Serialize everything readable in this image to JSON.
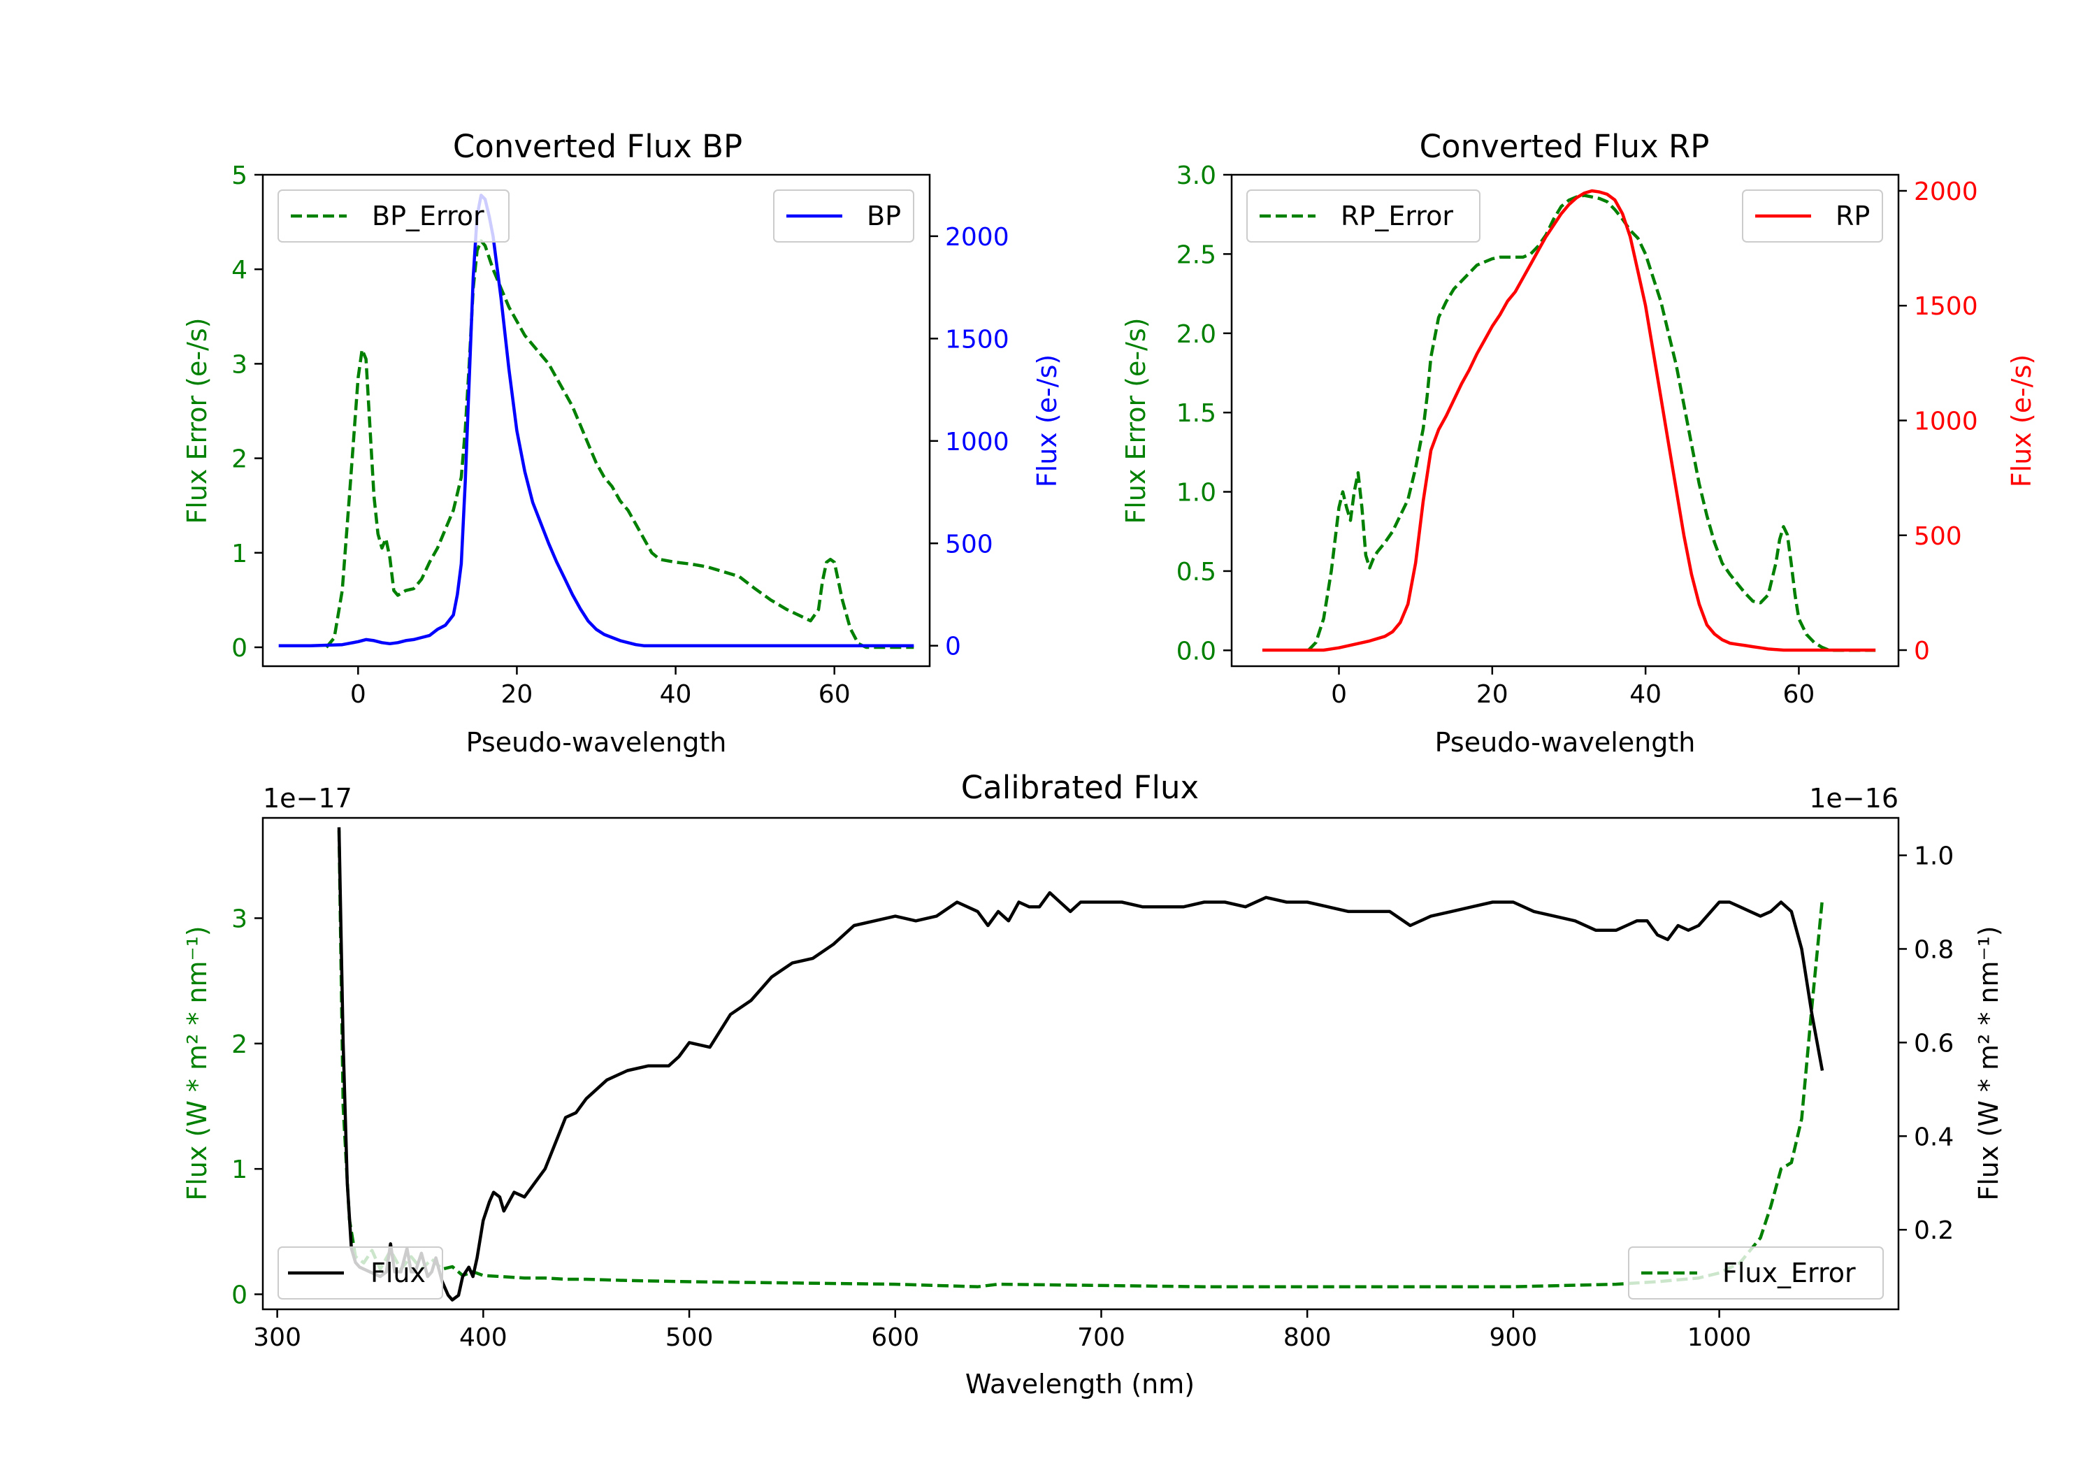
{
  "colors": {
    "error": "#008000",
    "bp": "#0000ff",
    "rp": "#ff0000",
    "flux": "#000000",
    "axis": "#000000",
    "legend_edge": "#cccccc"
  },
  "chart_data": [
    {
      "type": "line",
      "title": "Converted Flux BP",
      "xlabel": "Pseudo-wavelength",
      "ylabel_left": "Flux Error (e-/s)",
      "ylabel_right": "Flux (e-/s)",
      "xlim": [
        -12,
        72
      ],
      "ylim_left": [
        -0.2,
        5
      ],
      "ylim_right": [
        -100,
        2300
      ],
      "xticks": [
        0,
        20,
        40,
        60
      ],
      "yticks_left": [
        0,
        1,
        2,
        3,
        4,
        5
      ],
      "yticks_right": [
        0,
        500,
        1000,
        1500,
        2000
      ],
      "legend_left_position": "upper-left",
      "legend_right_position": "upper-right",
      "series": [
        {
          "name": "BP_Error",
          "axis": "left",
          "style": "dashed",
          "color": "#008000",
          "x": [
            -4,
            -3,
            -2,
            -1,
            0,
            0.5,
            1,
            2,
            2.5,
            3,
            3.5,
            4,
            4.5,
            5,
            6,
            7,
            8,
            9,
            10,
            11,
            12,
            13,
            13.5,
            14,
            14.5,
            15,
            15.5,
            16,
            17,
            18,
            19,
            20,
            21,
            22,
            23,
            24,
            25,
            26,
            27,
            28,
            29,
            30,
            31,
            32,
            33,
            34,
            35,
            36,
            37,
            38,
            40,
            42,
            44,
            46,
            48,
            50,
            52,
            54,
            56,
            57,
            58,
            58.5,
            59,
            59.5,
            60,
            61,
            62,
            63,
            64,
            66,
            68,
            70
          ],
          "values": [
            0,
            0.1,
            0.6,
            1.7,
            2.85,
            3.15,
            3.05,
            1.6,
            1.2,
            1.05,
            1.15,
            0.95,
            0.6,
            0.55,
            0.6,
            0.62,
            0.72,
            0.9,
            1.05,
            1.25,
            1.45,
            1.8,
            2.3,
            3.0,
            3.8,
            4.2,
            4.3,
            4.25,
            4.0,
            3.8,
            3.6,
            3.45,
            3.3,
            3.2,
            3.1,
            3.0,
            2.85,
            2.7,
            2.55,
            2.35,
            2.15,
            1.95,
            1.8,
            1.7,
            1.55,
            1.45,
            1.3,
            1.15,
            1.0,
            0.93,
            0.9,
            0.88,
            0.85,
            0.8,
            0.75,
            0.62,
            0.5,
            0.4,
            0.32,
            0.28,
            0.4,
            0.7,
            0.9,
            0.93,
            0.9,
            0.5,
            0.2,
            0.04,
            0,
            0,
            0,
            0
          ]
        },
        {
          "name": "BP",
          "axis": "right",
          "style": "solid",
          "color": "#0000ff",
          "x": [
            -10,
            -6,
            -2,
            0,
            1,
            2,
            3,
            4,
            5,
            6,
            7,
            8,
            9,
            10,
            11,
            12,
            12.5,
            13,
            13.5,
            14,
            14.5,
            15,
            15.5,
            16,
            16.5,
            17,
            18,
            19,
            20,
            21,
            22,
            23,
            24,
            25,
            26,
            27,
            28,
            29,
            30,
            31,
            32,
            33,
            34,
            35,
            36,
            37,
            38,
            40,
            45,
            50,
            55,
            60,
            65,
            70
          ],
          "values": [
            0,
            0,
            5,
            20,
            30,
            25,
            15,
            10,
            15,
            25,
            30,
            40,
            50,
            80,
            100,
            150,
            250,
            400,
            800,
            1300,
            1800,
            2100,
            2200,
            2180,
            2100,
            2000,
            1700,
            1350,
            1050,
            850,
            700,
            600,
            500,
            410,
            330,
            250,
            180,
            120,
            80,
            55,
            40,
            25,
            15,
            5,
            0,
            0,
            0,
            0,
            0,
            0,
            0,
            0,
            0,
            0
          ]
        }
      ]
    },
    {
      "type": "line",
      "title": "Converted Flux RP",
      "xlabel": "Pseudo-wavelength",
      "ylabel_left": "Flux Error (e-/s)",
      "ylabel_right": "Flux (e-/s)",
      "xlim": [
        -14,
        73
      ],
      "ylim_left": [
        -0.1,
        3.0
      ],
      "ylim_right": [
        -70,
        2070
      ],
      "xticks": [
        0,
        20,
        40,
        60
      ],
      "yticks_left": [
        0.0,
        0.5,
        1.0,
        1.5,
        2.0,
        2.5,
        3.0
      ],
      "yticks_right": [
        0,
        500,
        1000,
        1500,
        2000
      ],
      "legend_left_position": "upper-left",
      "legend_right_position": "upper-right",
      "series": [
        {
          "name": "RP_Error",
          "axis": "left",
          "style": "dashed",
          "color": "#008000",
          "x": [
            -4,
            -3,
            -2,
            -1,
            0,
            0.5,
            1,
            1.5,
            2,
            2.5,
            3,
            3.5,
            4,
            4.5,
            5,
            6,
            7,
            8,
            9,
            10,
            11,
            11.5,
            12,
            13,
            14,
            15,
            16,
            17,
            18,
            19,
            20,
            21,
            22,
            23,
            24,
            25,
            26,
            27,
            28,
            29,
            30,
            31,
            32,
            33,
            34,
            35,
            36,
            37,
            38,
            39,
            40,
            41,
            42,
            43,
            44,
            45,
            46,
            47,
            48,
            49,
            50,
            51,
            52,
            53,
            54,
            55,
            56,
            57,
            57.5,
            58,
            58.5,
            59,
            59.5,
            60,
            61,
            62,
            63,
            64,
            66,
            70
          ],
          "values": [
            0,
            0.05,
            0.2,
            0.5,
            0.9,
            1.0,
            0.9,
            0.82,
            1.0,
            1.12,
            0.9,
            0.6,
            0.52,
            0.58,
            0.62,
            0.68,
            0.75,
            0.85,
            0.95,
            1.15,
            1.4,
            1.6,
            1.85,
            2.1,
            2.2,
            2.28,
            2.33,
            2.38,
            2.43,
            2.45,
            2.47,
            2.48,
            2.48,
            2.48,
            2.48,
            2.5,
            2.55,
            2.62,
            2.72,
            2.8,
            2.84,
            2.86,
            2.87,
            2.86,
            2.85,
            2.83,
            2.78,
            2.72,
            2.65,
            2.6,
            2.5,
            2.35,
            2.2,
            2.0,
            1.8,
            1.55,
            1.3,
            1.05,
            0.85,
            0.68,
            0.55,
            0.48,
            0.42,
            0.36,
            0.31,
            0.3,
            0.35,
            0.55,
            0.7,
            0.78,
            0.73,
            0.55,
            0.35,
            0.2,
            0.1,
            0.05,
            0.02,
            0,
            0,
            0
          ]
        },
        {
          "name": "RP",
          "axis": "right",
          "style": "solid",
          "color": "#ff0000",
          "x": [
            -10,
            -2,
            0,
            2,
            4,
            6,
            7,
            8,
            9,
            10,
            11,
            12,
            13,
            14,
            15,
            16,
            17,
            18,
            19,
            20,
            21,
            22,
            23,
            24,
            25,
            26,
            27,
            28,
            29,
            30,
            31,
            32,
            33,
            34,
            35,
            36,
            37,
            38,
            39,
            40,
            41,
            42,
            43,
            44,
            45,
            46,
            47,
            48,
            49,
            50,
            51,
            52,
            53,
            54,
            55,
            56,
            58,
            60,
            62,
            64,
            66,
            70
          ],
          "values": [
            0,
            0,
            10,
            25,
            40,
            60,
            80,
            120,
            200,
            380,
            650,
            870,
            960,
            1020,
            1090,
            1160,
            1220,
            1290,
            1350,
            1410,
            1460,
            1520,
            1560,
            1620,
            1680,
            1740,
            1800,
            1850,
            1900,
            1940,
            1970,
            1990,
            2000,
            1995,
            1985,
            1960,
            1900,
            1800,
            1650,
            1500,
            1300,
            1100,
            900,
            700,
            500,
            330,
            200,
            110,
            70,
            45,
            30,
            25,
            20,
            15,
            10,
            5,
            0,
            0,
            0,
            0,
            0,
            0
          ]
        }
      ]
    },
    {
      "type": "line",
      "title": "Calibrated Flux",
      "xlabel": "Wavelength (nm)",
      "ylabel_left": "Flux (W * m² * nm⁻¹)",
      "ylabel_right": "Flux (W * m² * nm⁻¹)",
      "offset_left": "1e−17",
      "offset_right": "1e−16",
      "xlim": [
        293,
        1087
      ],
      "ylim_left": [
        -0.12,
        3.8
      ],
      "ylim_right": [
        0.03,
        1.08
      ],
      "xticks": [
        300,
        400,
        500,
        600,
        700,
        800,
        900,
        1000
      ],
      "yticks_left": [
        0,
        1,
        2,
        3
      ],
      "yticks_right": [
        0.2,
        0.4,
        0.6,
        0.8,
        1.0
      ],
      "legend_left_position": "lower-left",
      "legend_right_position": "lower-right",
      "series": [
        {
          "name": "Flux_Error",
          "axis": "left",
          "style": "dashed",
          "color": "#008000",
          "x": [
            330,
            332,
            335,
            338,
            342,
            346,
            350,
            355,
            360,
            365,
            370,
            375,
            380,
            385,
            390,
            395,
            400,
            410,
            420,
            430,
            440,
            450,
            470,
            500,
            550,
            600,
            620,
            640,
            650,
            700,
            750,
            800,
            850,
            900,
            950,
            970,
            990,
            1000,
            1010,
            1015,
            1020,
            1025,
            1030,
            1035,
            1040,
            1045,
            1050
          ],
          "values": [
            3.7,
            1.5,
            0.6,
            0.3,
            0.25,
            0.35,
            0.2,
            0.35,
            0.2,
            0.3,
            0.2,
            0.28,
            0.2,
            0.22,
            0.15,
            0.18,
            0.15,
            0.14,
            0.13,
            0.13,
            0.12,
            0.12,
            0.11,
            0.1,
            0.09,
            0.08,
            0.07,
            0.06,
            0.08,
            0.07,
            0.06,
            0.06,
            0.06,
            0.06,
            0.08,
            0.1,
            0.13,
            0.17,
            0.25,
            0.35,
            0.45,
            0.7,
            1.0,
            1.05,
            1.4,
            2.3,
            3.15
          ]
        },
        {
          "name": "Flux",
          "axis": "right",
          "style": "solid",
          "color": "#000000",
          "x": [
            330,
            332,
            334,
            336,
            338,
            340,
            345,
            350,
            353,
            355,
            357,
            360,
            363,
            365,
            367,
            370,
            373,
            375,
            377,
            380,
            383,
            385,
            388,
            390,
            393,
            395,
            397,
            400,
            403,
            405,
            408,
            410,
            415,
            420,
            425,
            430,
            440,
            445,
            450,
            460,
            470,
            480,
            490,
            495,
            500,
            510,
            520,
            530,
            540,
            550,
            560,
            570,
            580,
            590,
            600,
            610,
            620,
            630,
            640,
            645,
            650,
            655,
            660,
            665,
            670,
            675,
            680,
            685,
            690,
            700,
            710,
            720,
            730,
            740,
            750,
            760,
            770,
            780,
            790,
            800,
            810,
            820,
            830,
            840,
            850,
            860,
            870,
            880,
            890,
            900,
            910,
            920,
            930,
            940,
            950,
            955,
            960,
            965,
            970,
            975,
            980,
            985,
            990,
            1000,
            1005,
            1010,
            1015,
            1020,
            1025,
            1030,
            1035,
            1040,
            1045,
            1050
          ],
          "values": [
            1.06,
            0.6,
            0.3,
            0.16,
            0.13,
            0.12,
            0.11,
            0.1,
            0.11,
            0.17,
            0.11,
            0.11,
            0.16,
            0.11,
            0.11,
            0.15,
            0.1,
            0.11,
            0.14,
            0.09,
            0.06,
            0.05,
            0.06,
            0.1,
            0.12,
            0.1,
            0.14,
            0.22,
            0.26,
            0.28,
            0.27,
            0.24,
            0.28,
            0.27,
            0.3,
            0.33,
            0.44,
            0.45,
            0.48,
            0.52,
            0.54,
            0.55,
            0.55,
            0.57,
            0.6,
            0.59,
            0.66,
            0.69,
            0.74,
            0.77,
            0.78,
            0.81,
            0.85,
            0.86,
            0.87,
            0.86,
            0.87,
            0.9,
            0.88,
            0.85,
            0.88,
            0.86,
            0.9,
            0.89,
            0.89,
            0.92,
            0.9,
            0.88,
            0.9,
            0.9,
            0.9,
            0.89,
            0.89,
            0.89,
            0.9,
            0.9,
            0.89,
            0.91,
            0.9,
            0.9,
            0.89,
            0.88,
            0.88,
            0.88,
            0.85,
            0.87,
            0.88,
            0.89,
            0.9,
            0.9,
            0.88,
            0.87,
            0.86,
            0.84,
            0.84,
            0.85,
            0.86,
            0.86,
            0.83,
            0.82,
            0.85,
            0.84,
            0.85,
            0.9,
            0.9,
            0.89,
            0.88,
            0.87,
            0.88,
            0.9,
            0.88,
            0.8,
            0.66,
            0.54
          ]
        }
      ]
    }
  ]
}
